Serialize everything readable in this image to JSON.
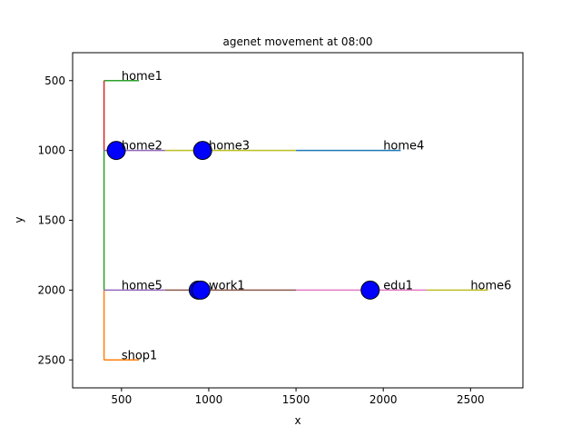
{
  "chart_data": {
    "type": "line",
    "title": "agenet movement at 08:00",
    "xlabel": "x",
    "ylabel": "y",
    "xlim": [
      220,
      2800
    ],
    "ylim": [
      2700,
      300
    ],
    "y_inverted": true,
    "grid": false,
    "xticks": [
      500,
      1000,
      1500,
      2000,
      2500
    ],
    "yticks": [
      500,
      1000,
      1500,
      2000,
      2500
    ],
    "roads": [
      {
        "color": "#2ca02c",
        "points": [
          [
            400,
            500
          ],
          [
            600,
            500
          ]
        ]
      },
      {
        "color": "#d62728",
        "points": [
          [
            400,
            500
          ],
          [
            400,
            1000
          ]
        ]
      },
      {
        "color": "#2ca02c",
        "points": [
          [
            400,
            1000
          ],
          [
            400,
            2000
          ]
        ]
      },
      {
        "color": "#ff7f0e",
        "points": [
          [
            400,
            2000
          ],
          [
            400,
            2500
          ]
        ]
      },
      {
        "color": "#ff7f0e",
        "points": [
          [
            400,
            2500
          ],
          [
            600,
            2500
          ]
        ]
      },
      {
        "color": "#9467bd",
        "points": [
          [
            400,
            1000
          ],
          [
            750,
            1000
          ]
        ]
      },
      {
        "color": "#bcbd22",
        "points": [
          [
            750,
            1000
          ],
          [
            1500,
            1000
          ]
        ]
      },
      {
        "color": "#1f77b4",
        "points": [
          [
            1500,
            1000
          ],
          [
            2100,
            1000
          ]
        ]
      },
      {
        "color": "#9467bd",
        "points": [
          [
            400,
            2000
          ],
          [
            750,
            2000
          ]
        ]
      },
      {
        "color": "#8c564b",
        "points": [
          [
            750,
            2000
          ],
          [
            1500,
            2000
          ]
        ]
      },
      {
        "color": "#e377c2",
        "points": [
          [
            1500,
            2000
          ],
          [
            2250,
            2000
          ]
        ]
      },
      {
        "color": "#bcbd22",
        "points": [
          [
            2250,
            2000
          ],
          [
            2600,
            2000
          ]
        ]
      }
    ],
    "locations": [
      {
        "name": "home1",
        "x": 500,
        "y": 500
      },
      {
        "name": "home2",
        "x": 500,
        "y": 1000
      },
      {
        "name": "home3",
        "x": 1000,
        "y": 1000
      },
      {
        "name": "home4",
        "x": 2000,
        "y": 1000
      },
      {
        "name": "home5",
        "x": 500,
        "y": 2000
      },
      {
        "name": "work1",
        "x": 1000,
        "y": 2000
      },
      {
        "name": "edu1",
        "x": 2000,
        "y": 2000
      },
      {
        "name": "home6",
        "x": 2500,
        "y": 2000
      },
      {
        "name": "shop1",
        "x": 500,
        "y": 2500
      }
    ],
    "agents": [
      {
        "x": 470,
        "y": 1000
      },
      {
        "x": 965,
        "y": 1000
      },
      {
        "x": 940,
        "y": 2000
      },
      {
        "x": 955,
        "y": 2000
      },
      {
        "x": 1925,
        "y": 2000
      }
    ],
    "agent_color": "#0000ff"
  }
}
